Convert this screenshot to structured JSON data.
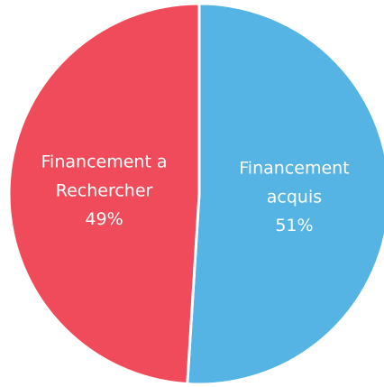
{
  "chart_data": {
    "type": "pie",
    "categories": [
      "Financement acquis",
      "Financement a Rechercher"
    ],
    "values": [
      51,
      49
    ],
    "value_labels": [
      "51%",
      "49%"
    ],
    "colors": [
      "#56b4e4",
      "#f04b5a"
    ]
  }
}
